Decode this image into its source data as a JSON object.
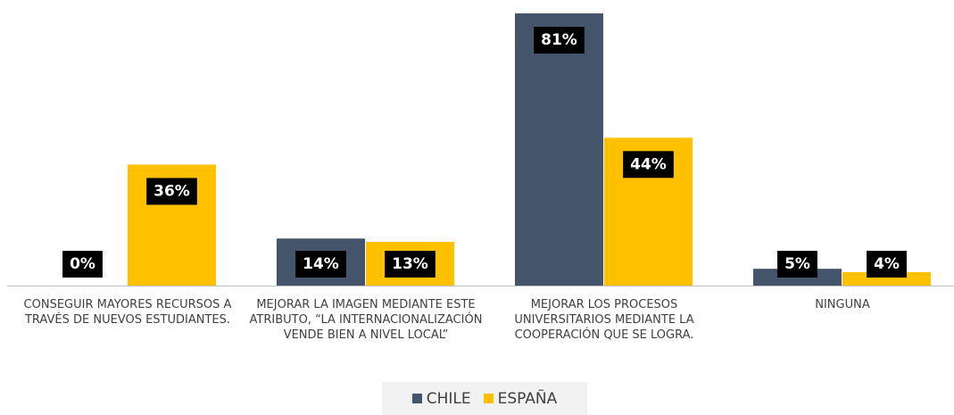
{
  "chart_data": {
    "type": "bar",
    "categories": [
      "CONSEGUIR MAYORES RECURSOS A TRAVÉS DE NUEVOS ESTUDIANTES.",
      "MEJORAR LA IMAGEN MEDIANTE ESTE ATRIBUTO, “LA INTERNACIONALIZACIÓN VENDE BIEN A NIVEL LOCAL”",
      "MEJORAR LOS PROCESOS UNIVERSITARIOS MEDIANTE LA COOPERACIÓN QUE SE LOGRA.",
      "NINGUNA"
    ],
    "series": [
      {
        "name": "CHILE",
        "color": "#44546a",
        "values": [
          0,
          14,
          81,
          5
        ],
        "value_labels": [
          "0%",
          "14%",
          "81%",
          "5%"
        ]
      },
      {
        "name": "ESPAÑA",
        "color": "#ffc000",
        "values": [
          36,
          13,
          44,
          4
        ],
        "value_labels": [
          "36%",
          "13%",
          "44%",
          "4%"
        ]
      }
    ],
    "legend": "bottom"
  }
}
